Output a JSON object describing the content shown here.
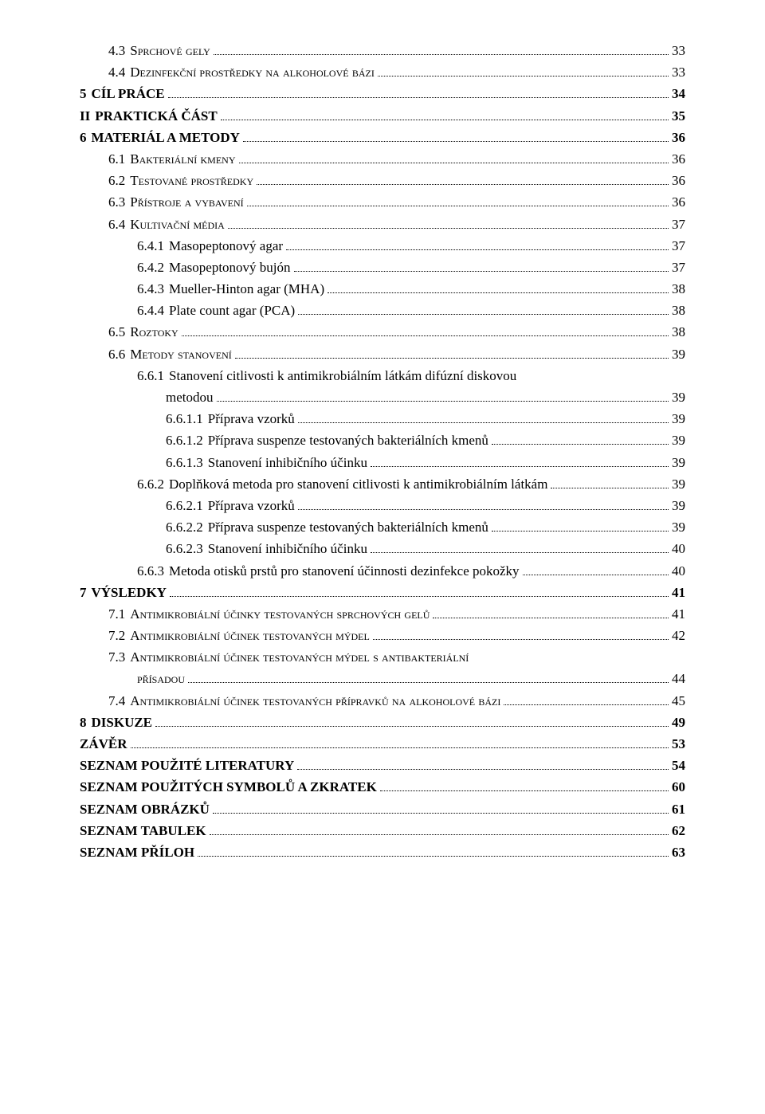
{
  "entries": [
    {
      "label": "4.3",
      "title": "Sprchové gely",
      "page": "33",
      "indent": 1,
      "bold": false,
      "sc": true
    },
    {
      "label": "4.4",
      "title": "Dezinfekční prostředky na alkoholové bázi",
      "page": "33",
      "indent": 1,
      "bold": false,
      "sc": true
    },
    {
      "label": "5",
      "title": "CÍL PRÁCE",
      "page": "34",
      "indent": 0,
      "bold": true,
      "sc": false
    },
    {
      "label": "II",
      "title": "PRAKTICKÁ  ČÁST",
      "page": "35",
      "indent": 0,
      "bold": true,
      "sc": false
    },
    {
      "label": "6",
      "title": "MATERIÁL A  METODY",
      "page": "36",
      "indent": 0,
      "bold": true,
      "sc": false
    },
    {
      "label": "6.1",
      "title": "Bakteriální kmeny",
      "page": "36",
      "indent": 1,
      "bold": false,
      "sc": true
    },
    {
      "label": "6.2",
      "title": "Testované prostředky",
      "page": "36",
      "indent": 1,
      "bold": false,
      "sc": true
    },
    {
      "label": "6.3",
      "title": "Přístroje a vybavení",
      "page": "36",
      "indent": 1,
      "bold": false,
      "sc": true
    },
    {
      "label": "6.4",
      "title": "Kultivační média",
      "page": "37",
      "indent": 1,
      "bold": false,
      "sc": true
    },
    {
      "label": "6.4.1",
      "title": "Masopeptonový agar",
      "page": "37",
      "indent": 2,
      "bold": false,
      "sc": false
    },
    {
      "label": "6.4.2",
      "title": "Masopeptonový bujón",
      "page": "37",
      "indent": 2,
      "bold": false,
      "sc": false
    },
    {
      "label": "6.4.3",
      "title": "Mueller-Hinton agar (MHA)",
      "page": "38",
      "indent": 2,
      "bold": false,
      "sc": false
    },
    {
      "label": "6.4.4",
      "title": "Plate count agar (PCA)",
      "page": "38",
      "indent": 2,
      "bold": false,
      "sc": false
    },
    {
      "label": "6.5",
      "title": "Roztoky",
      "page": "38",
      "indent": 1,
      "bold": false,
      "sc": true
    },
    {
      "label": "6.6",
      "title": "Metody stanovení",
      "page": "39",
      "indent": 1,
      "bold": false,
      "sc": true
    },
    {
      "label": "6.6.1",
      "title": "Stanovení citlivosti k antimikrobiálním látkám difúzní diskovou metodou",
      "page": "39",
      "indent": 2,
      "bold": false,
      "sc": false,
      "multiline": true
    },
    {
      "label": "6.6.1.1",
      "title": "Příprava vzorků",
      "page": "39",
      "indent": 3,
      "bold": false,
      "sc": false
    },
    {
      "label": "6.6.1.2",
      "title": "Příprava suspenze testovaných bakteriálních kmenů",
      "page": "39",
      "indent": 3,
      "bold": false,
      "sc": false
    },
    {
      "label": "6.6.1.3",
      "title": "Stanovení inhibičního účinku",
      "page": "39",
      "indent": 3,
      "bold": false,
      "sc": false
    },
    {
      "label": "6.6.2",
      "title": "Doplňková metoda pro stanovení citlivosti k antimikrobiálním látkám",
      "page": "39",
      "indent": 2,
      "bold": false,
      "sc": false
    },
    {
      "label": "6.6.2.1",
      "title": "Příprava vzorků",
      "page": "39",
      "indent": 3,
      "bold": false,
      "sc": false
    },
    {
      "label": "6.6.2.2",
      "title": "Příprava suspenze testovaných bakteriálních kmenů",
      "page": "39",
      "indent": 3,
      "bold": false,
      "sc": false
    },
    {
      "label": "6.6.2.3",
      "title": "Stanovení inhibičního účinku",
      "page": "40",
      "indent": 3,
      "bold": false,
      "sc": false
    },
    {
      "label": "6.6.3",
      "title": "Metoda otisků prstů pro stanovení účinnosti dezinfekce pokožky",
      "page": "40",
      "indent": 2,
      "bold": false,
      "sc": false
    },
    {
      "label": "7",
      "title": "VÝSLEDKY",
      "page": "41",
      "indent": 0,
      "bold": true,
      "sc": false
    },
    {
      "label": "7.1",
      "title": "Antimikrobiální účinky testovaných sprchových gelů",
      "page": "41",
      "indent": 1,
      "bold": false,
      "sc": true
    },
    {
      "label": "7.2",
      "title": "Antimikrobiální účinek testovaných mýdel",
      "page": "42",
      "indent": 1,
      "bold": false,
      "sc": true
    },
    {
      "label": "7.3",
      "title": "Antimikrobiální účinek testovaných mýdel s antibakteriální přísadou",
      "page": "44",
      "indent": 1,
      "bold": false,
      "sc": true,
      "multiline": true
    },
    {
      "label": "7.4",
      "title": "Antimikrobiální účinek testovaných přípravků na alkoholové bázi",
      "page": "45",
      "indent": 1,
      "bold": false,
      "sc": true
    },
    {
      "label": "8",
      "title": "DISKUZE",
      "page": "49",
      "indent": 0,
      "bold": true,
      "sc": false
    },
    {
      "label": "",
      "title": "ZÁVĚR",
      "page": "53",
      "indent": 0,
      "bold": true,
      "sc": false
    },
    {
      "label": "",
      "title": "SEZNAM  POUŽITÉ  LITERATURY",
      "page": "54",
      "indent": 0,
      "bold": true,
      "sc": false
    },
    {
      "label": "",
      "title": "SEZNAM  POUŽITÝCH  SYMBOLŮ  A  ZKRATEK",
      "page": "60",
      "indent": 0,
      "bold": true,
      "sc": false
    },
    {
      "label": "",
      "title": "SEZNAM  OBRÁZKŮ",
      "page": "61",
      "indent": 0,
      "bold": true,
      "sc": false
    },
    {
      "label": "",
      "title": "SEZNAM TABULEK",
      "page": "62",
      "indent": 0,
      "bold": true,
      "sc": false
    },
    {
      "label": "",
      "title": "SEZNAM  PŘÍLOH",
      "page": "63",
      "indent": 0,
      "bold": true,
      "sc": false
    }
  ],
  "multiline_split": {
    "6.6.1": {
      "line1": "Stanovení citlivosti k antimikrobiálním látkám difúzní diskovou",
      "line2": "metodou"
    },
    "7.3": {
      "line1": "Antimikrobiální účinek testovaných mýdel s antibakteriální",
      "line2": "přísadou"
    }
  }
}
